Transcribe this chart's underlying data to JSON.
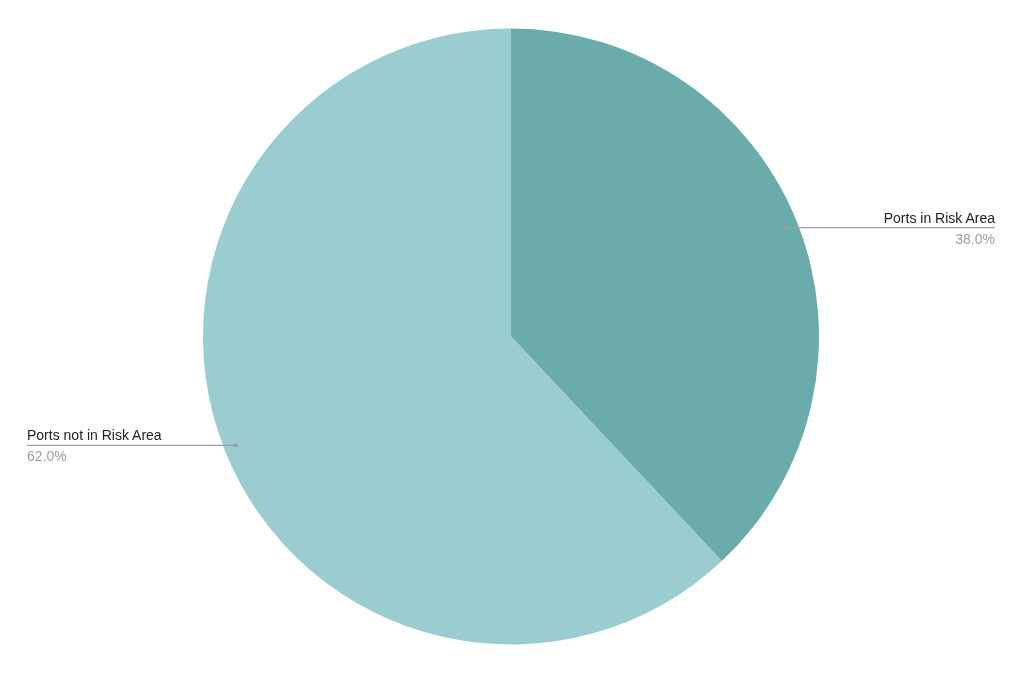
{
  "chart_data": {
    "type": "pie",
    "categories": [
      "Ports in Risk Area",
      "Ports not in Risk Area"
    ],
    "values": [
      38,
      62
    ],
    "colors": [
      "#6aabac",
      "#99cdcf"
    ],
    "value_labels": [
      "38.0%",
      "62.0%"
    ],
    "legend": false
  }
}
